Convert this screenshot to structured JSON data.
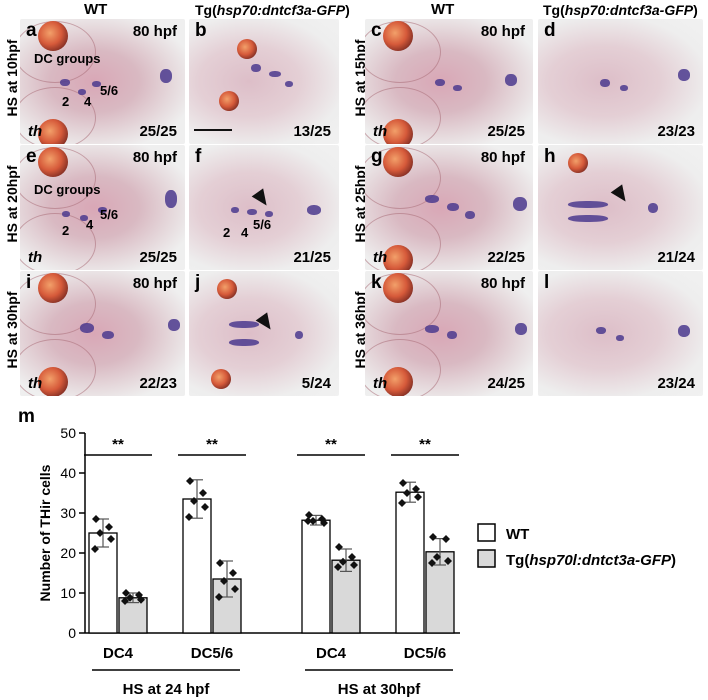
{
  "headers": {
    "wt": "WT",
    "tg_prefix": "Tg(",
    "tg_italic": "hsp70:dntcf3a-GFP",
    "tg_suffix": ")"
  },
  "row_labels": [
    "HS at 10hpf",
    "HS at 15hpf",
    "HS at 20hpf",
    "HS at 25hpf",
    "HS at 30hpf",
    "HS at 36hpf"
  ],
  "panels": [
    {
      "letter": "a",
      "hpf": "80 hpf",
      "count": "25/25",
      "th": "th",
      "dc_groups": "DC groups",
      "n2": "2",
      "n4": "4",
      "n56": "5/6"
    },
    {
      "letter": "b",
      "count": "13/25"
    },
    {
      "letter": "c",
      "hpf": "80 hpf",
      "count": "25/25",
      "th": "th"
    },
    {
      "letter": "d",
      "count": "23/23"
    },
    {
      "letter": "e",
      "hpf": "80 hpf",
      "count": "25/25",
      "th": "th",
      "dc_groups": "DC groups",
      "n2": "2",
      "n4": "4",
      "n56": "5/6"
    },
    {
      "letter": "f",
      "count": "21/25",
      "n2": "2",
      "n4": "4",
      "n56": "5/6"
    },
    {
      "letter": "g",
      "hpf": "80 hpf",
      "count": "22/25",
      "th": "th"
    },
    {
      "letter": "h",
      "count": "21/24"
    },
    {
      "letter": "i",
      "hpf": "80 hpf",
      "count": "22/23",
      "th": "th"
    },
    {
      "letter": "j",
      "count": "5/24"
    },
    {
      "letter": "k",
      "hpf": "80 hpf",
      "count": "24/25",
      "th": "th"
    },
    {
      "letter": "l",
      "count": "23/24"
    }
  ],
  "chart_data": {
    "type": "bar",
    "panel_letter": "m",
    "ylabel": "Number of THir cells",
    "ylim": [
      0,
      50
    ],
    "yticks": [
      0,
      10,
      20,
      30,
      40,
      50
    ],
    "categories": [
      "DC4",
      "DC5/6",
      "DC4",
      "DC5/6"
    ],
    "groups": [
      "HS at 24 hpf",
      "HS at 30hpf"
    ],
    "series": [
      {
        "name": "WT",
        "color": "#ffffff",
        "values": [
          25,
          33.5,
          28.2,
          35.2
        ],
        "errors": [
          3.5,
          4.8,
          1.2,
          2.5
        ],
        "points": [
          [
            28.5,
            26.5,
            25,
            23.5,
            21
          ],
          [
            38,
            35,
            33,
            31.5,
            29
          ],
          [
            29.5,
            28.5,
            28,
            27.5,
            28
          ],
          [
            37.5,
            36,
            35,
            34,
            32.5
          ]
        ]
      },
      {
        "name": "Tg(hsp70l:dntct3a-GFP)",
        "color": "#d9d9d9",
        "values": [
          8.8,
          13.5,
          18.2,
          20.3
        ],
        "errors": [
          1.2,
          4.5,
          2.8,
          3.3
        ],
        "points": [
          [
            10,
            9.5,
            8.8,
            8.3,
            8
          ],
          [
            17.5,
            15,
            13,
            11,
            9
          ],
          [
            21.5,
            19,
            17.8,
            17,
            16.5
          ],
          [
            24,
            23.5,
            19,
            18,
            17.5
          ]
        ]
      }
    ],
    "significance": [
      "**",
      "**",
      "**",
      "**"
    ],
    "legend": {
      "wt": "WT",
      "tg_prefix": "Tg(",
      "tg_italic": "hsp70l:dntct3a-GFP",
      "tg_suffix": ")",
      "position": "right"
    }
  },
  "colors": {
    "purple_stain": "#4b3a8e",
    "pink_tissue": "#d9a7b6",
    "bar_tg": "#d9d9d9"
  }
}
